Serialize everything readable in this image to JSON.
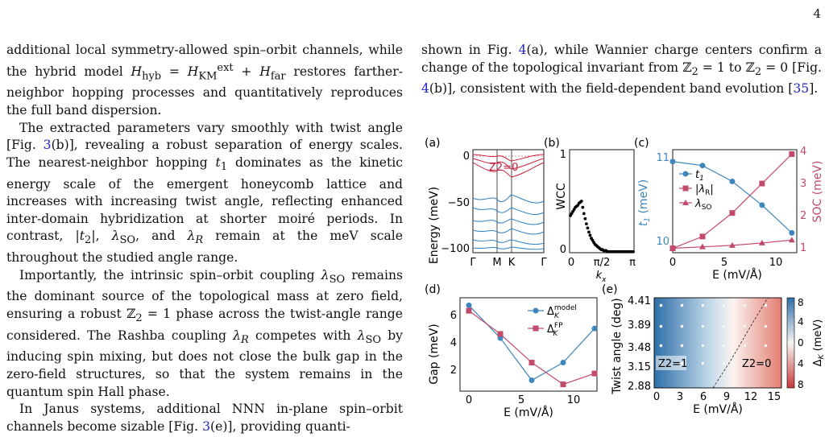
{
  "page_number": "4",
  "left_column": {
    "p1": "additional local symmetry-allowed spin–orbit channels, while the hybrid model H_hyb = H_KM^ext + H_far restores farther-neighbor hopping processes and quantitatively reproduces the full band dispersion.",
    "p2": "The extracted parameters vary smoothly with twist angle [Fig. 3(b)], revealing a robust separation of energy scales. The nearest-neighbor hopping t1 dominates as the kinetic energy scale of the emergent honeycomb lattice and increases with increasing twist angle, reflecting enhanced inter-domain hybridization at shorter moiré periods. In contrast, |t2|, λSO, and λR remain at the meV scale throughout the studied angle range.",
    "p3": "Importantly, the intrinsic spin–orbit coupling λSO remains the dominant source of the topological mass at zero field, ensuring a robust Z2 = 1 phase across the twist-angle range considered. The Rashba coupling λR competes with λSO by inducing spin mixing, but does not close the bulk gap in the zero-field structures, so that the system remains in the quantum spin Hall phase.",
    "p4": "In Janus systems, additional NNN in-plane spin–orbit channels become sizable [Fig. 3(e)], providing quanti-"
  },
  "right_column": {
    "p1": "shown in Fig. 4(a), while Wannier charge centers confirm a change of the topological invariant from Z2 = 1 to Z2 = 0 [Fig. 4(b)], consistent with the field-dependent band evolution [35]."
  },
  "figure": {
    "panel_a": {
      "label": "(a)",
      "ylabel": "Energy (meV)",
      "yticks": [
        "0",
        "−50",
        "−100"
      ],
      "xticks": [
        "Γ",
        "M",
        "K",
        "Γ"
      ],
      "annotation": "Z2=0"
    },
    "panel_b": {
      "label": "(b)",
      "ylabel": "WCC",
      "yticks": [
        "1",
        "0"
      ],
      "xticks": [
        "0",
        "π/2",
        "π"
      ],
      "xlabel": "k_x"
    },
    "panel_c": {
      "label": "(c)",
      "ylabel_left": "t1 (meV)",
      "ylabel_right": "SOC (meV)",
      "yticks_left": [
        "11",
        "10"
      ],
      "yticks_right": [
        "4",
        "3",
        "2",
        "1"
      ],
      "xticks": [
        "0",
        "5",
        "10"
      ],
      "xlabel": "E (mV/Å)",
      "legend": [
        "t1",
        "|λR|",
        "λSO"
      ]
    },
    "panel_d": {
      "label": "(d)",
      "ylabel": "Gap (meV)",
      "yticks": [
        "6",
        "4",
        "2"
      ],
      "xticks": [
        "0",
        "5",
        "10"
      ],
      "xlabel": "E (mV/Å)",
      "legend": [
        "Δ_K^model",
        "Δ_K^FP"
      ]
    },
    "panel_e": {
      "label": "(e)",
      "ylabel": "Twist angle (deg)",
      "yticks": [
        "4.41",
        "3.89",
        "3.48",
        "3.15",
        "2.88"
      ],
      "xticks": [
        "0",
        "3",
        "6",
        "9",
        "12",
        "15"
      ],
      "xlabel": "E (mV/Å)",
      "region_left": "Z2=1",
      "region_right": "Z2=0",
      "colorbar_label": "Δ_K (meV)",
      "colorbar_ticks": [
        "8",
        "4",
        "0",
        "4",
        "8"
      ]
    }
  },
  "chart_data": [
    {
      "type": "line",
      "title": "",
      "xlabel": "E (mV/Å)",
      "ylabel": "t1 (meV)",
      "x": [
        0,
        3,
        6,
        9,
        12
      ],
      "series": [
        {
          "name": "t1",
          "values": [
            11.0,
            10.95,
            10.75,
            10.45,
            10.1
          ]
        },
        {
          "name": "|λR|",
          "values": [
            0.7,
            1.1,
            1.9,
            2.9,
            3.9
          ]
        },
        {
          "name": "λSO",
          "values": [
            0.7,
            0.75,
            0.8,
            0.88,
            0.98
          ]
        }
      ]
    },
    {
      "type": "line",
      "title": "",
      "xlabel": "E (mV/Å)",
      "ylabel": "Gap (meV)",
      "x": [
        0,
        3,
        6,
        9,
        12
      ],
      "series": [
        {
          "name": "Δ_K^model",
          "values": [
            6.3,
            3.9,
            0.8,
            2.1,
            4.6
          ]
        },
        {
          "name": "Δ_K^FP",
          "values": [
            5.9,
            4.2,
            2.1,
            0.5,
            1.3
          ]
        }
      ]
    },
    {
      "type": "scatter",
      "title": "",
      "xlabel": "k_x",
      "ylabel": "WCC",
      "x": [
        0.04,
        0.1,
        0.16,
        0.22,
        0.28,
        0.34,
        0.4,
        0.46,
        0.52,
        0.58,
        0.64,
        0.7,
        0.76,
        0.82,
        0.88,
        0.94,
        1.0,
        1.06,
        1.12,
        1.18,
        1.24,
        1.3,
        1.36,
        1.42,
        1.48,
        1.54,
        1.6,
        1.66,
        1.72,
        1.78,
        1.84,
        1.9,
        1.96,
        2.02,
        2.08,
        2.14,
        2.2,
        2.26,
        2.32,
        2.38,
        2.44,
        2.5,
        2.56,
        2.62,
        2.68,
        2.74,
        2.8,
        2.86,
        2.92,
        2.98,
        3.04,
        3.1
      ],
      "values": [
        0.36,
        0.38,
        0.4,
        0.42,
        0.44,
        0.45,
        0.46,
        0.48,
        0.49,
        0.5,
        0.44,
        0.38,
        0.33,
        0.28,
        0.24,
        0.2,
        0.17,
        0.14,
        0.12,
        0.1,
        0.08,
        0.07,
        0.06,
        0.05,
        0.04,
        0.03,
        0.03,
        0.02,
        0.02,
        0.02,
        0.01,
        0.01,
        0.01,
        0.01,
        0.01,
        0.01,
        0.01,
        0.01,
        0.01,
        0.01,
        0.01,
        0.01,
        0.01,
        0.01,
        0.01,
        0.01,
        0.01,
        0.01,
        0.01,
        0.01,
        0.01,
        0.01
      ],
      "xlim": [
        0,
        3.14159
      ],
      "ylim": [
        0,
        1
      ]
    }
  ],
  "colors": {
    "blue": "#3f86bd",
    "red": "#c24a6a",
    "band_red": "#c8203a",
    "band_blue": "#2f7fc1"
  }
}
